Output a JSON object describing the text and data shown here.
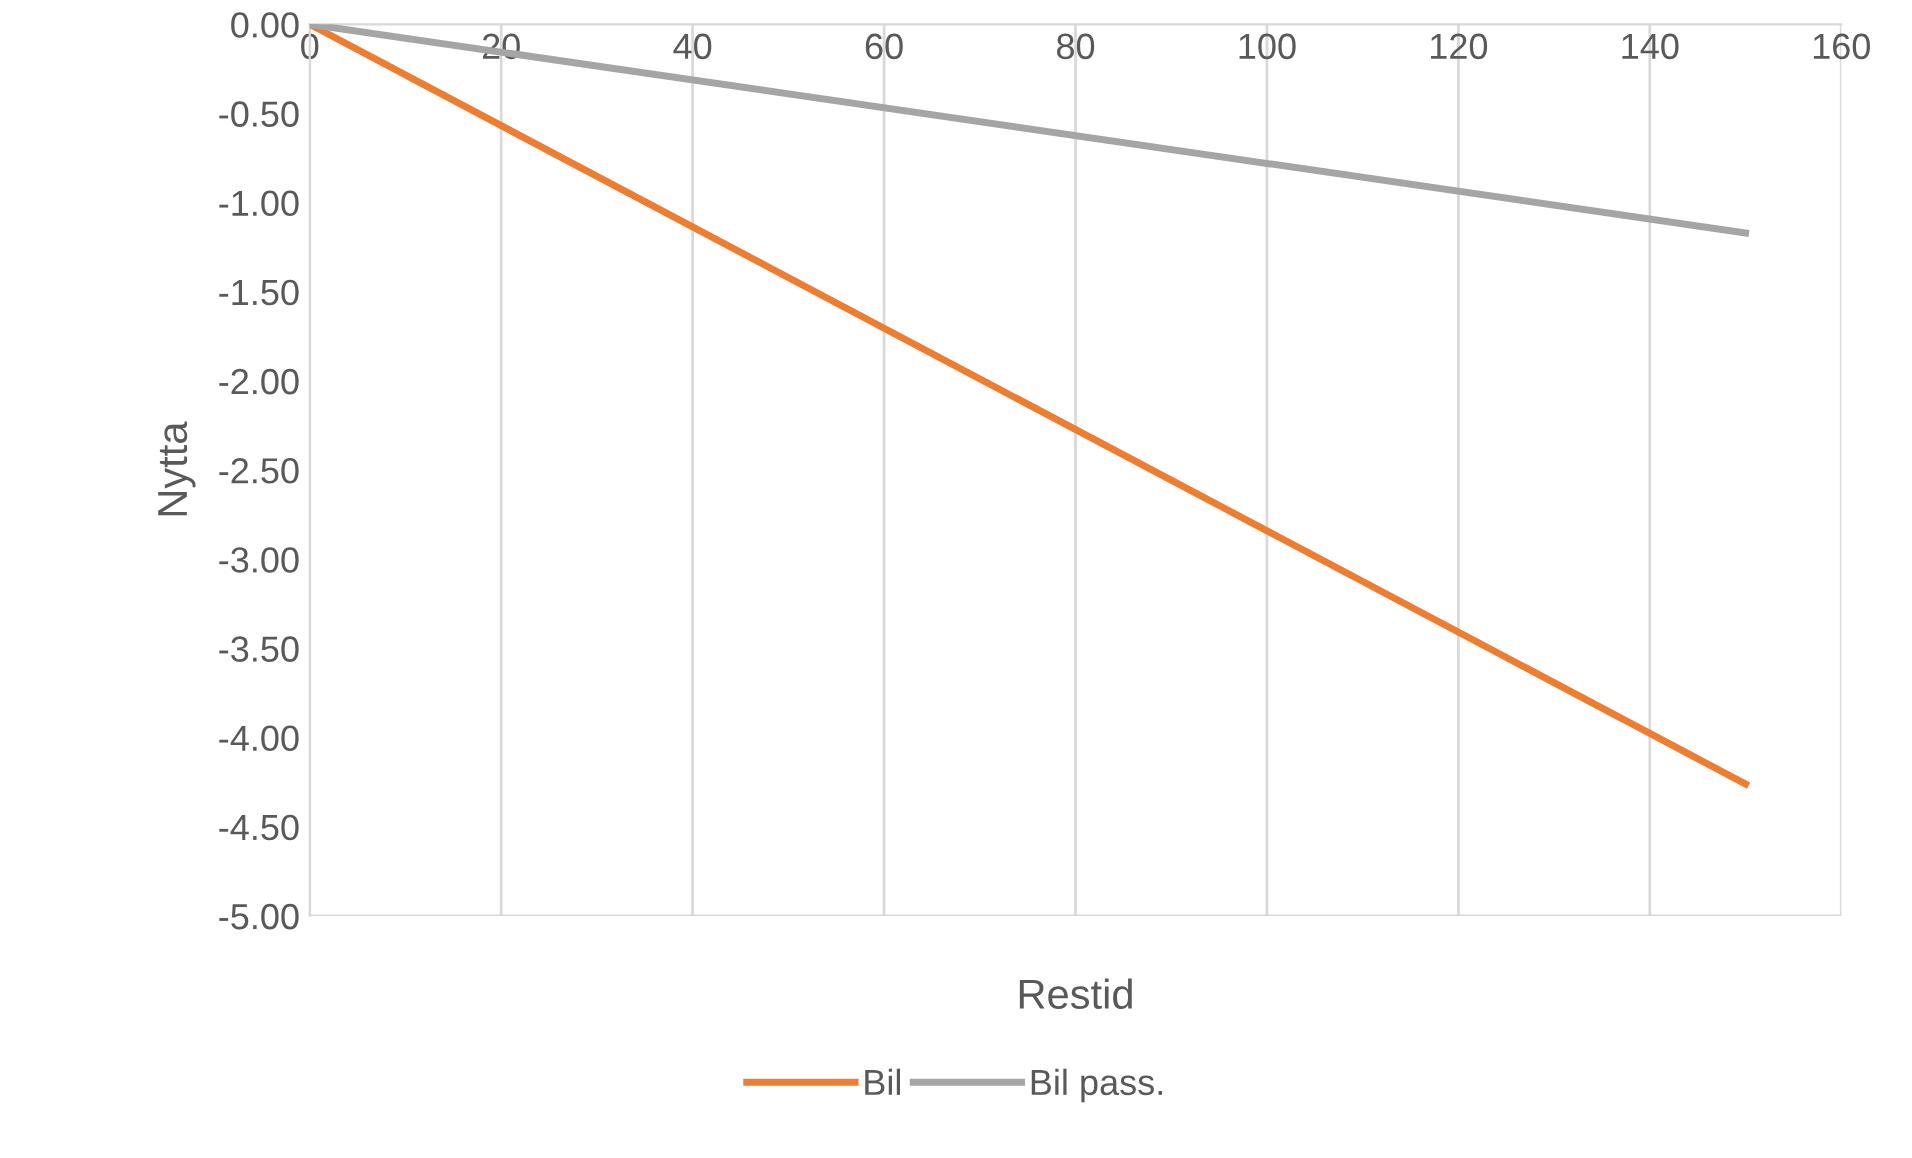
{
  "chart_data": {
    "type": "line",
    "xlabel": "Restid",
    "ylabel": "Nytta",
    "series": [
      {
        "name": "Bil",
        "color": "#ed7d31",
        "values": [
          0,
          -4.26
        ]
      },
      {
        "name": "Bil pass.",
        "color": "#a5a5a5",
        "values": [
          0,
          -1.17
        ]
      }
    ],
    "x": [
      0,
      150
    ],
    "xlim": [
      0,
      160
    ],
    "xticks": [
      0,
      20,
      40,
      60,
      80,
      100,
      120,
      140,
      160
    ],
    "ylim": [
      -5,
      0
    ],
    "yticks": [
      {
        "value": 0,
        "label": "0.00"
      },
      {
        "value": -0.5,
        "label": "-0.50"
      },
      {
        "value": -1,
        "label": "-1.00"
      },
      {
        "value": -1.5,
        "label": "-1.50"
      },
      {
        "value": -2,
        "label": "-2.00"
      },
      {
        "value": -2.5,
        "label": "-2.50"
      },
      {
        "value": -3,
        "label": "-3.00"
      },
      {
        "value": -3.5,
        "label": "-3.50"
      },
      {
        "value": -4,
        "label": "-4.00"
      },
      {
        "value": -4.5,
        "label": "-4.50"
      },
      {
        "value": -5,
        "label": "-5.00"
      }
    ],
    "grid": "x",
    "legend": "bottom",
    "marker": "none",
    "line_style": "solid"
  }
}
